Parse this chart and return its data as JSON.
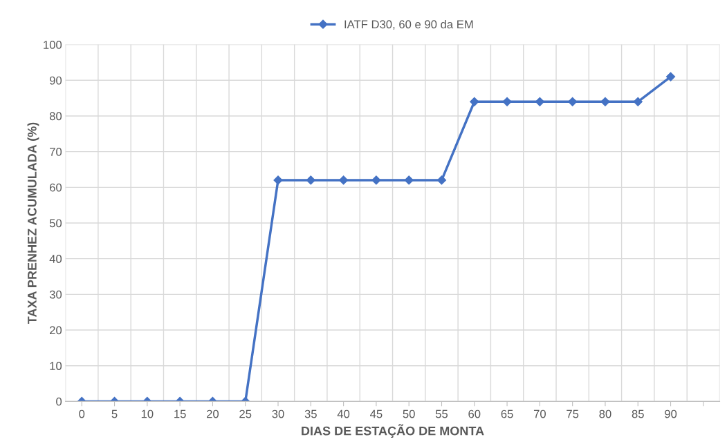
{
  "chart_data": {
    "type": "line",
    "xlabel": "DIAS DE ESTAÇÃO DE MONTA",
    "ylabel": "TAXA PRENHEZ ACUMULADA (%)",
    "categories": [
      "0",
      "5",
      "10",
      "15",
      "20",
      "25",
      "30",
      "35",
      "40",
      "45",
      "50",
      "55",
      "60",
      "65",
      "70",
      "75",
      "80",
      "85",
      "90",
      null
    ],
    "series": [
      {
        "name": "IATF D30, 60 e 90 da EM",
        "color": "#4472c4",
        "values": [
          0,
          0,
          0,
          0,
          0,
          0,
          62,
          62,
          62,
          62,
          62,
          62,
          84,
          84,
          84,
          84,
          84,
          84,
          91,
          null
        ]
      }
    ],
    "ylim": [
      0,
      100
    ],
    "yticks": [
      0,
      10,
      20,
      30,
      40,
      50,
      60,
      70,
      80,
      90,
      100
    ],
    "grid": true,
    "legend": "top",
    "marker": "diamond",
    "line_style": "solid"
  }
}
